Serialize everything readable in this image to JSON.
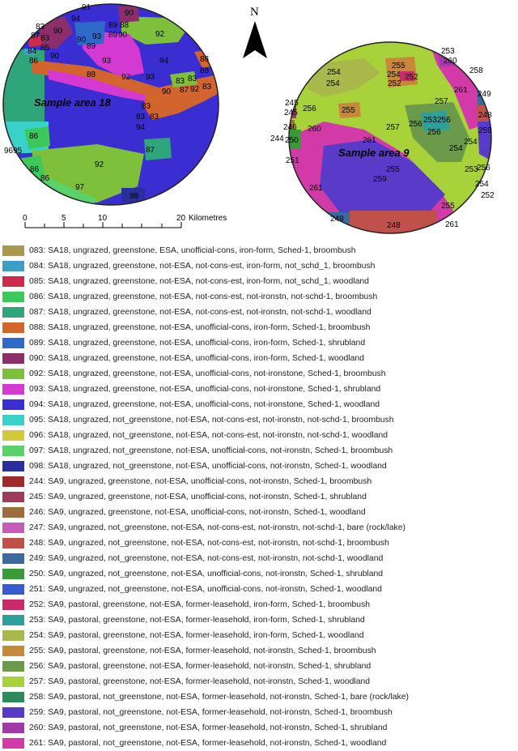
{
  "map": {
    "north_label": "N",
    "area18_label": "Sample area 18",
    "area9_label": "Sample area 9",
    "scale": {
      "ticks": [
        "0",
        "5",
        "10",
        "20"
      ],
      "unit": "Kilometres"
    },
    "area18_codes": [
      "91",
      "90",
      "94",
      "90",
      "89",
      "88",
      "89",
      "90",
      "83",
      "90",
      "93",
      "92",
      "87",
      "83",
      "85",
      "89",
      "84",
      "86",
      "90",
      "93",
      "94",
      "88",
      "88",
      "92",
      "93",
      "88",
      "90",
      "83",
      "83",
      "92",
      "83",
      "87",
      "83",
      "83",
      "83",
      "94",
      "86",
      "9695",
      "92",
      "87",
      "86",
      "86",
      "97",
      "98"
    ],
    "area9_codes": [
      "253",
      "260",
      "255",
      "254",
      "252",
      "252",
      "254",
      "254",
      "258",
      "261",
      "249",
      "257",
      "245",
      "245",
      "255",
      "256",
      "248",
      "246",
      "260",
      "257",
      "256",
      "253",
      "256",
      "259",
      "244",
      "250",
      "261",
      "256",
      "254",
      "251",
      "253",
      "256",
      "254",
      "255",
      "259",
      "261",
      "254",
      "252",
      "255",
      "249",
      "248",
      "261"
    ]
  },
  "legend": [
    {
      "code": "083",
      "text": "083: SA18, ungrazed, greenstone, ESA, unofficial-cons, iron-form, Sched-1, broombush",
      "color": "#a89a4a"
    },
    {
      "code": "084",
      "text": "084: SA18, ungrazed, greenstone, not-ESA, not-cons-est, iron-form, not_schd_1, broombush",
      "color": "#3aa0c8"
    },
    {
      "code": "085",
      "text": "085: SA18, ungrazed, greenstone, not-ESA, not-cons-est, iron-form, not_schd_1, woodland",
      "color": "#d02a4a"
    },
    {
      "code": "086",
      "text": "086: SA18, ungrazed, greenstone, not-ESA, not-cons-est, not-ironstn, not-schd-1, broombush",
      "color": "#3cc85a"
    },
    {
      "code": "087",
      "text": "087: SA18, ungrazed, greenstone, not-ESA, not-cons-est, not-ironstn, not-schd-1, woodland",
      "color": "#2ea57a"
    },
    {
      "code": "088",
      "text": "088: SA18, ungrazed, greenstone, not-ESA, unofficial-cons, iron-form, Sched-1, broombush",
      "color": "#d2652e"
    },
    {
      "code": "089",
      "text": "089: SA18, ungrazed, greenstone, not-ESA, unofficial-cons, iron-form, Sched-1, shrubland",
      "color": "#2e6ac8"
    },
    {
      "code": "090",
      "text": "090: SA18, ungrazed, greenstone, not-ESA, unofficial-cons, iron-form, Sched-1, woodland",
      "color": "#8c2e6a"
    },
    {
      "code": "092",
      "text": "092: SA18, ungrazed, greenstone, not-ESA, unofficial-cons, not-ironstone, Sched-1, broombush",
      "color": "#7ec03c"
    },
    {
      "code": "093",
      "text": "093: SA18, ungrazed, greenstone, not-ESA, unofficial-cons, not-ironstone, Sched-1, shrubland",
      "color": "#d43ad2"
    },
    {
      "code": "094",
      "text": "094: SA18, ungrazed, greenstone, not-ESA, unofficial-cons, not-ironstone, Sched-1, woodland",
      "color": "#3a2ed2"
    },
    {
      "code": "095",
      "text": "095: SA18, ungrazed, not_greenstone, not-ESA, not-cons-est, not-ironstn, not-schd-1, broombush",
      "color": "#3ad2c8"
    },
    {
      "code": "096",
      "text": "096: SA18, ungrazed, not_greenstone, not-ESA, not-cons-est, not-ironstn, not-schd-1, woodland",
      "color": "#d2c83a"
    },
    {
      "code": "097",
      "text": "097: SA18, ungrazed, not_greenstone, not-ESA, unofficial-cons, not-ironstn, Sched-1, broombush",
      "color": "#5ad26a"
    },
    {
      "code": "098",
      "text": "098: SA18, ungrazed, not_greenstone, not-ESA, unofficial-cons, not-ironstn, Sched-1, woodland",
      "color": "#2a2ea0"
    },
    {
      "code": "244",
      "text": "244: SA9, ungrazed, greenstone, not-ESA, unofficial-cons, not-ironstn, Sched-1, broombush",
      "color": "#a02a2a"
    },
    {
      "code": "245",
      "text": "245: SA9, ungrazed, greenstone, not-ESA, unofficial-cons, not-ironstn, Sched-1, shrubland",
      "color": "#a03a5a"
    },
    {
      "code": "246",
      "text": "246: SA9, ungrazed, greenstone, not-ESA, unofficial-cons, not-ironstn, Sched-1, woodland",
      "color": "#a06a3a"
    },
    {
      "code": "247",
      "text": "247: SA9, ungrazed, not_greenstone, not-ESA, not-cons-est, not-ironstn, not-schd-1, bare (rock/lake)",
      "color": "#c85ab8"
    },
    {
      "code": "248",
      "text": "248: SA9, ungrazed, not_greenstone, not-ESA, not-cons-est, not-ironstn, not-schd-1, broombush",
      "color": "#c0504a"
    },
    {
      "code": "249",
      "text": "249: SA9, ungrazed, not_greenstone, not-ESA, not-cons-est, not-ironstn, not-schd-1, woodland",
      "color": "#3a6aa0"
    },
    {
      "code": "250",
      "text": "250: SA9, ungrazed, not_greenstone, not-ESA, unofficial-cons, not-ironstn, Sched-1, shrubland",
      "color": "#3a9a3a"
    },
    {
      "code": "251",
      "text": "251: SA9, ungrazed, not_greenstone, not-ESA, unofficial-cons, not-ironstn, Sched-1, woodland",
      "color": "#3a5ad2"
    },
    {
      "code": "252",
      "text": "252: SA9, pastoral, greenstone, not-ESA, former-leasehold, iron-form, Sched-1, broombush",
      "color": "#c82a6a"
    },
    {
      "code": "253",
      "text": "253: SA9, pastoral, greenstone, not-ESA, former-leasehold, iron-form, Sched-1, shrubland",
      "color": "#2ea09a"
    },
    {
      "code": "254",
      "text": "254: SA9, pastoral, greenstone, not-ESA, former-leasehold, iron-form, Sched-1, woodland",
      "color": "#a8b84a"
    },
    {
      "code": "255",
      "text": "255: SA9, pastoral, greenstone, not-ESA, former-leasehold, not-ironstn, Sched-1, broombush",
      "color": "#c8883a"
    },
    {
      "code": "256",
      "text": "256: SA9, pastoral, greenstone, not-ESA, former-leasehold, not-ironstn, Sched-1, shrubland",
      "color": "#6a9a4a"
    },
    {
      "code": "257",
      "text": "257: SA9, pastoral, greenstone, not-ESA, former-leasehold, not-ironstn, Sched-1, woodland",
      "color": "#a8d23a"
    },
    {
      "code": "258",
      "text": "258: SA9, pastoral, not_greenstone, not-ESA, former-leasehold, not-ironstn, Sched-1, bare (rock/lake)",
      "color": "#2e8a5a"
    },
    {
      "code": "259",
      "text": "259: SA9, pastoral, not_greenstone, not-ESA, former-leasehold, not-ironstn, Sched-1, broombush",
      "color": "#5a3ac8"
    },
    {
      "code": "260",
      "text": "260: SA9, pastoral, not_greenstone, not-ESA, former-leasehold, not-ironstn, Sched-1, shrubland",
      "color": "#a03aa8"
    },
    {
      "code": "261",
      "text": "261: SA9, pastoral, not_greenstone, not-ESA, former-leasehold, not-ironstn, Sched-1, woodland",
      "color": "#d23aa8"
    }
  ]
}
